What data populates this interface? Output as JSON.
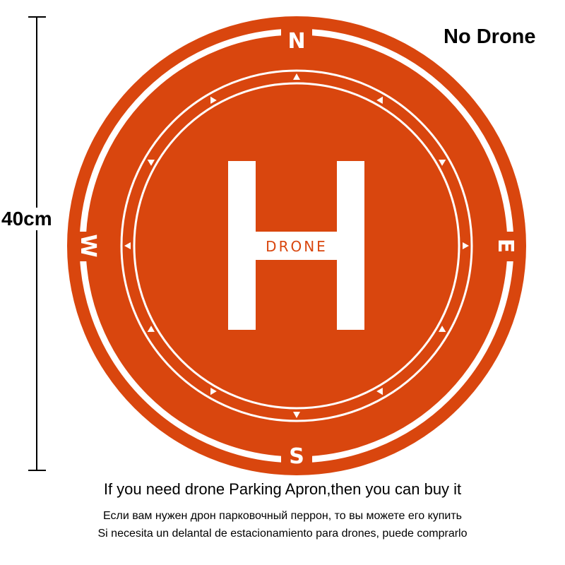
{
  "title": "No Drone",
  "size_label": "40cm",
  "pad": {
    "center_letter": "H",
    "center_text": "DRONE",
    "compass": {
      "north": "N",
      "south": "S",
      "east": "E",
      "west": "W"
    },
    "colors": {
      "orange": "#D9460E",
      "white": "#FFFFFF"
    }
  },
  "captions": [
    "If you need drone Parking Apron,then you can buy it",
    "Если вам нужен дрон парковочный перрон, то вы можете его купить",
    "Si necesita un delantal de estacionamiento para drones, puede comprarlo"
  ]
}
